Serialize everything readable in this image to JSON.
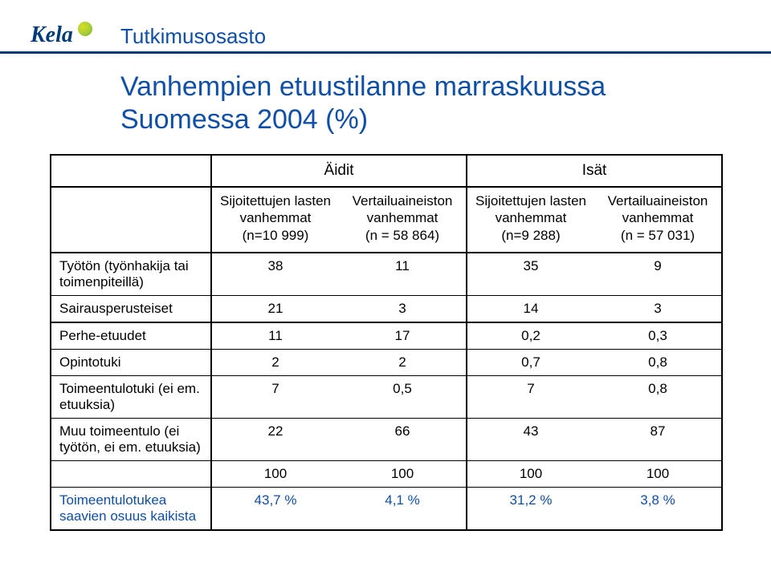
{
  "brand": {
    "name": "Kela"
  },
  "department": "Tutkimusosasto",
  "title_line1": "Vanhempien etuustilanne marraskuussa",
  "title_line2": "Suomessa 2004 (%)",
  "table": {
    "group_headers": [
      "Äidit",
      "Isät"
    ],
    "sub_headers": [
      {
        "line1": "Sijoitettujen lasten vanhemmat",
        "line2": "(n=10 999)"
      },
      {
        "line1": "Vertailuaineiston vanhemmat",
        "line2": "(n = 58 864)"
      },
      {
        "line1": "Sijoitettujen lasten vanhemmat",
        "line2": "(n=9 288)"
      },
      {
        "line1": "Vertailuaineiston vanhemmat",
        "line2": "(n = 57 031)"
      }
    ],
    "rows": [
      {
        "label": "Työtön (työnhakija tai toimenpiteillä)",
        "v": [
          "38",
          "11",
          "35",
          "9"
        ]
      },
      {
        "label": "Sairausperusteiset",
        "v": [
          "21",
          "3",
          "14",
          "3"
        ]
      },
      {
        "label": "Perhe-etuudet",
        "v": [
          "11",
          "17",
          "0,2",
          "0,3"
        ]
      },
      {
        "label": "Opintotuki",
        "v": [
          "2",
          "2",
          "0,7",
          "0,8"
        ]
      },
      {
        "label": "Toimeentulotuki (ei em. etuuksia)",
        "v": [
          "7",
          "0,5",
          "7",
          "0,8"
        ]
      },
      {
        "label": "Muu toimeentulo (ei työtön, ei em. etuuksia)",
        "v": [
          "22",
          "66",
          "43",
          "87"
        ]
      }
    ],
    "totals": [
      "100",
      "100",
      "100",
      "100"
    ],
    "footer_label": "Toimeentulotukea saavien osuus kaikista",
    "footer": [
      "43,7 %",
      "4,1 %",
      "31,2 %",
      "3,8 %"
    ]
  },
  "colors": {
    "brand_blue": "#003a7a",
    "text_blue": "#0f4fa8",
    "black": "#000000",
    "bg": "#ffffff"
  }
}
